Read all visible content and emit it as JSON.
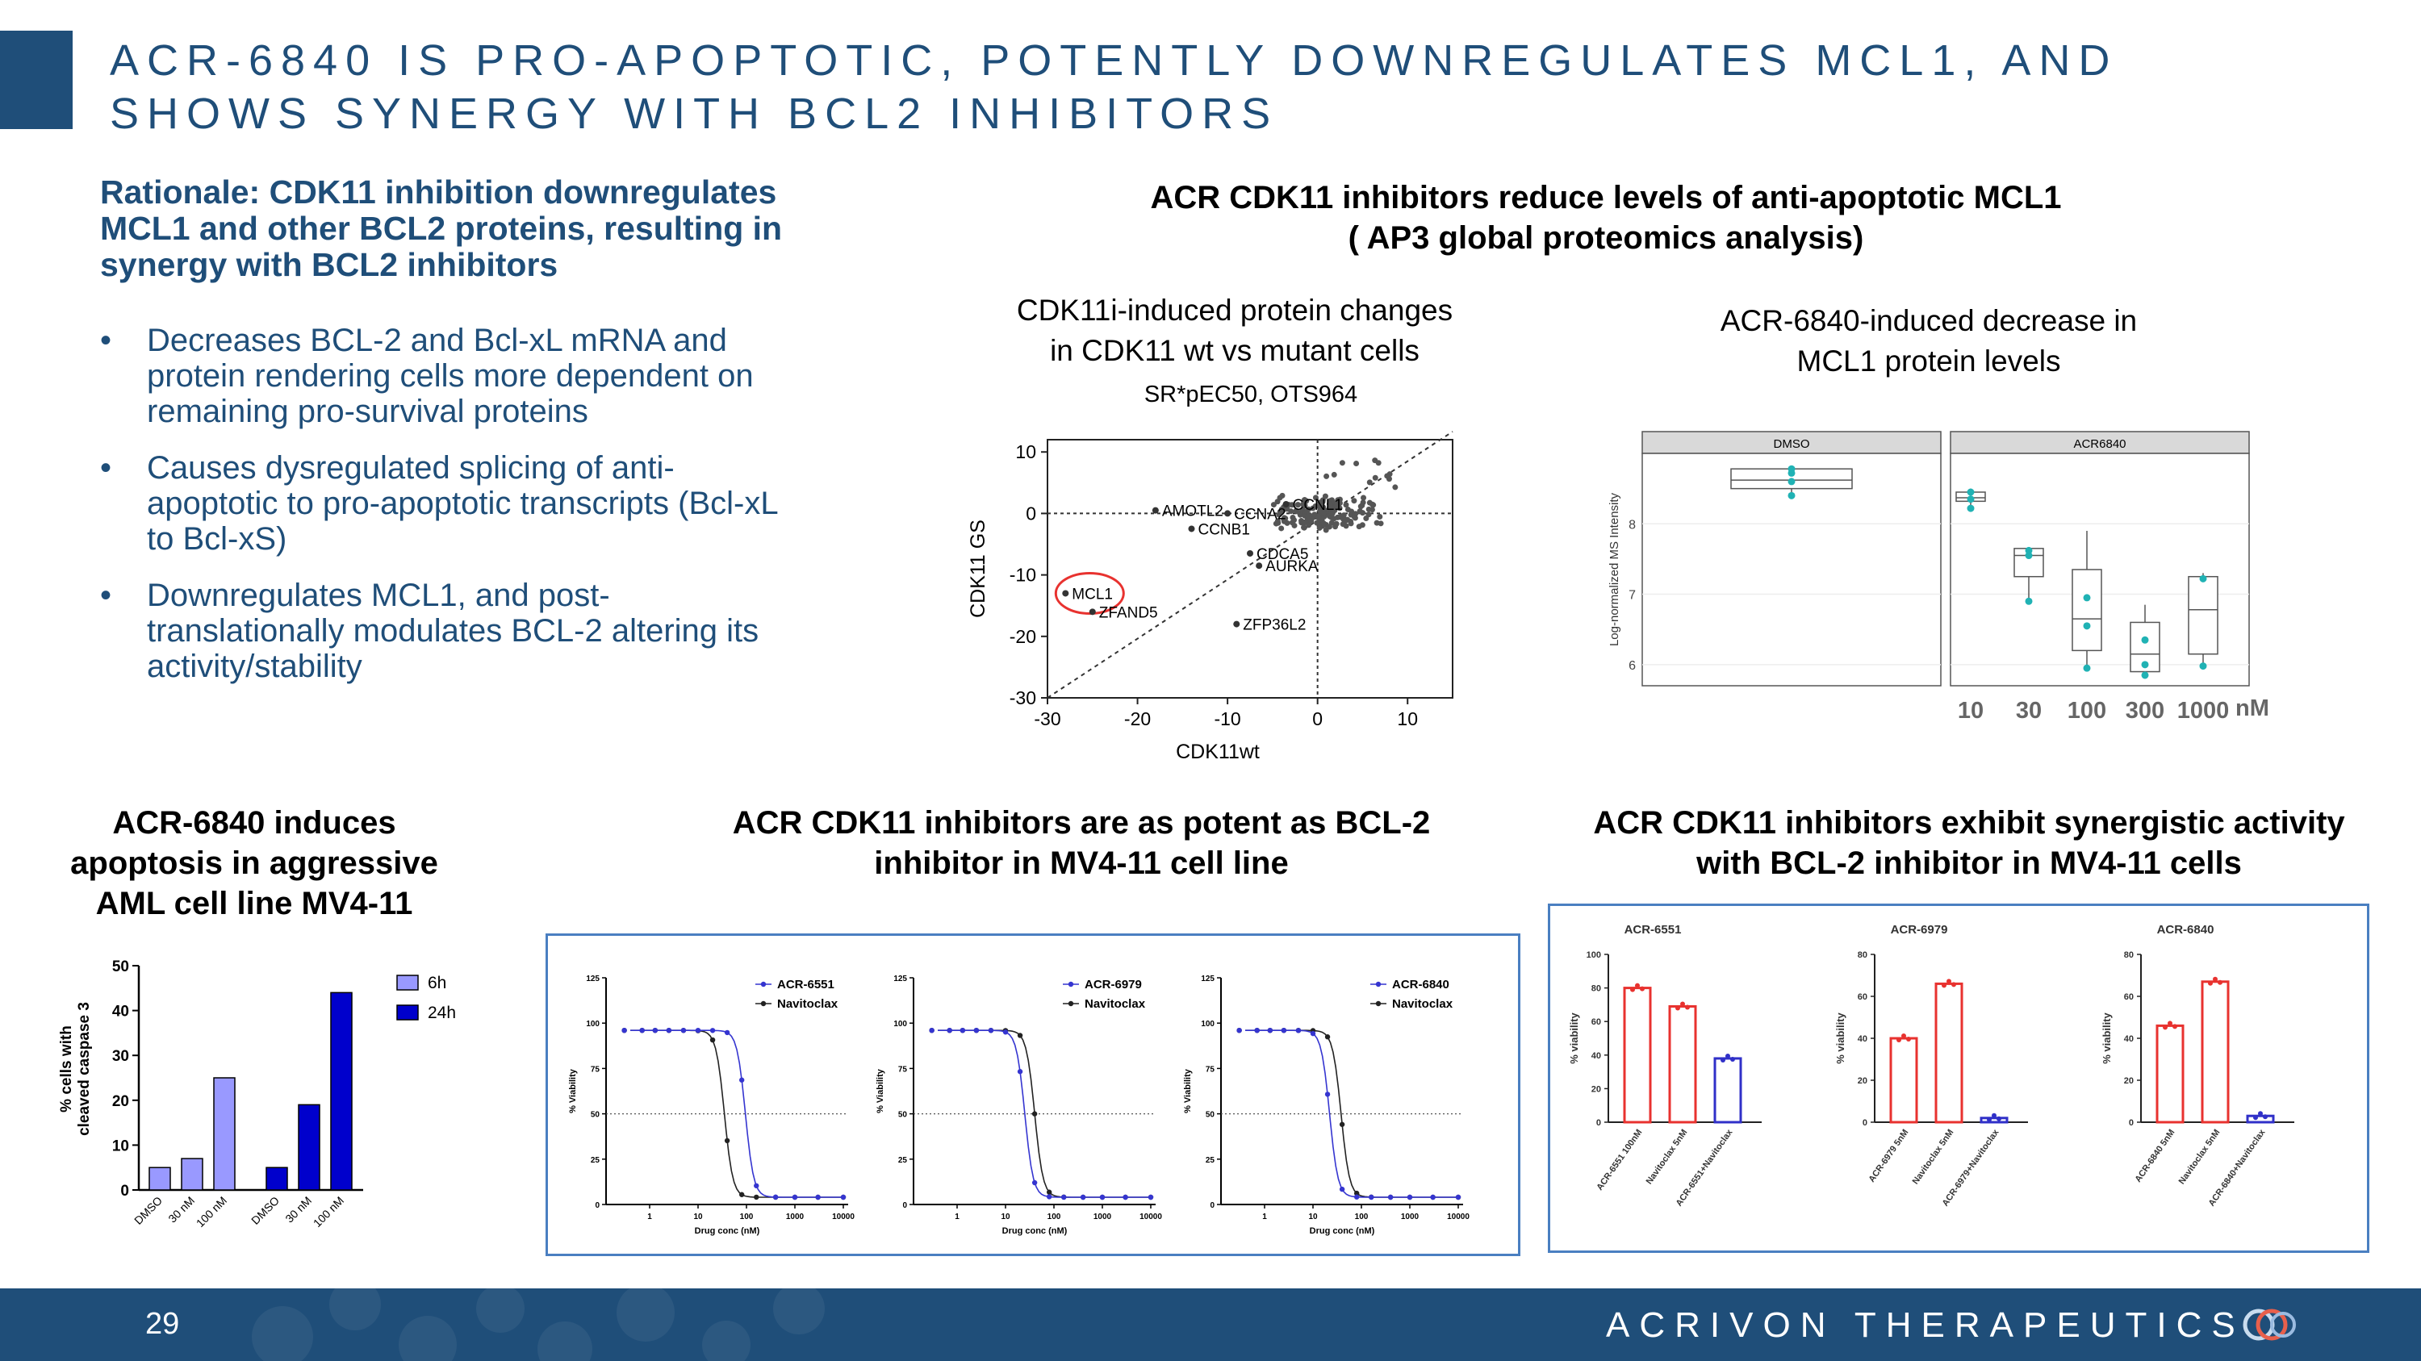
{
  "slide": {
    "title_line1": "ACR-6840 IS PRO-APOPTOTIC, POTENTLY DOWNREGULATES MCL1, AND",
    "title_line2": "SHOWS SYNERGY WITH BCL2 INHIBITORS",
    "rationale": "Rationale: CDK11 inhibition downregulates MCL1 and other BCL2 proteins, resulting in synergy with BCL2 inhibitors",
    "bullets": [
      "Decreases BCL-2 and Bcl-xL mRNA and protein rendering cells more dependent on remaining pro-survival proteins",
      "Causes dysregulated splicing of anti-apoptotic to pro-apoptotic transcripts (Bcl-xL to Bcl-xS)",
      "Downregulates MCL1, and post-translationally modulates BCL-2 altering its activity/stability"
    ],
    "proteomics_title_line1": "ACR CDK11 inhibitors reduce levels of anti-apoptotic MCL1",
    "proteomics_title_line2": "( AP3 global proteomics analysis)",
    "scatter_caption_line1": "CDK11i-induced protein changes",
    "scatter_caption_line2": "in CDK11 wt vs mutant cells",
    "box_caption_line1": "ACR-6840-induced decrease in",
    "box_caption_line2": "MCL1 protein levels",
    "apoptosis_title_line1": "ACR-6840 induces",
    "apoptosis_title_line2": "apoptosis in aggressive",
    "apoptosis_title_line3": "AML cell line MV4-11",
    "potency_title_line1": "ACR CDK11 inhibitors are as potent as BCL-2",
    "potency_title_line2": "inhibitor in MV4-11 cell line",
    "synergy_title_line1": "ACR CDK11 inhibitors exhibit synergistic activity",
    "synergy_title_line2": "with BCL-2 inhibitor in MV4-11 cells",
    "page_number": "29",
    "brand": "ACRIVON THERAPEUTICS",
    "colors": {
      "navy": "#1f4e79",
      "accent_blue": "#4a7fc1",
      "teal": "#20b2b4",
      "red": "#e8322f"
    }
  },
  "chart_data": [
    {
      "id": "scatter",
      "type": "scatter",
      "title": "SR*pEC50, OTS964",
      "xlabel": "CDK11wt",
      "ylabel": "CDK11 GS",
      "xlim": [
        -30,
        15
      ],
      "ylim": [
        -30,
        12
      ],
      "xticks": [
        -30,
        -20,
        -10,
        0,
        10
      ],
      "yticks": [
        10,
        0,
        -10,
        -20,
        -30
      ],
      "points": [
        {
          "label": "MCL1",
          "x": -28,
          "y": -13,
          "highlight": true
        },
        {
          "label": "ZFAND5",
          "x": -25,
          "y": -16
        },
        {
          "label": "AMOTL2",
          "x": -18,
          "y": 0.5
        },
        {
          "label": "CCNA2",
          "x": -10,
          "y": 0
        },
        {
          "label": "CCNL1",
          "x": -3.5,
          "y": 1.5
        },
        {
          "label": "CCNB1",
          "x": -14,
          "y": -2.5
        },
        {
          "label": "CDCA5",
          "x": -7.5,
          "y": -6.5
        },
        {
          "label": "AURKA",
          "x": -6.5,
          "y": -8.5
        },
        {
          "label": "ZFP36L2",
          "x": -9,
          "y": -18
        }
      ]
    },
    {
      "id": "boxplot",
      "type": "box",
      "ylabel": "Log-normalized MS Intensity",
      "ylim": [
        5.7,
        9.0
      ],
      "yticks": [
        6,
        7,
        8
      ],
      "panels": [
        "DMSO",
        "ACR6840"
      ],
      "categories": [
        "10",
        "30",
        "100",
        "300",
        "1000"
      ],
      "unit": "nM",
      "groups": [
        {
          "panel": "DMSO",
          "min": 8.4,
          "q1": 8.5,
          "median": 8.62,
          "q3": 8.78,
          "max": 8.8,
          "points": [
            8.4,
            8.6,
            8.72,
            8.78
          ]
        },
        {
          "panel": "ACR6840",
          "cat": "10",
          "min": 8.2,
          "q1": 8.32,
          "median": 8.37,
          "q3": 8.45,
          "max": 8.5,
          "points": [
            8.22,
            8.35,
            8.45
          ]
        },
        {
          "panel": "ACR6840",
          "cat": "30",
          "min": 6.9,
          "q1": 7.25,
          "median": 7.55,
          "q3": 7.65,
          "max": 7.67,
          "points": [
            6.9,
            7.55,
            7.62
          ]
        },
        {
          "panel": "ACR6840",
          "cat": "100",
          "min": 5.95,
          "q1": 6.2,
          "median": 6.65,
          "q3": 7.35,
          "max": 7.9,
          "points": [
            5.95,
            6.55,
            6.95
          ]
        },
        {
          "panel": "ACR6840",
          "cat": "300",
          "min": 5.8,
          "q1": 5.9,
          "median": 6.15,
          "q3": 6.6,
          "max": 6.85,
          "points": [
            5.85,
            6.0,
            6.35
          ]
        },
        {
          "panel": "ACR6840",
          "cat": "1000",
          "min": 5.98,
          "q1": 6.15,
          "median": 6.78,
          "q3": 7.25,
          "max": 7.3,
          "points": [
            5.98,
            7.22
          ]
        }
      ]
    },
    {
      "id": "caspase",
      "type": "bar",
      "ylabel_line1": "% cells with",
      "ylabel_line2": "cleaved caspase 3",
      "ylim": [
        0,
        50
      ],
      "yticks": [
        0,
        10,
        20,
        30,
        40,
        50
      ],
      "categories": [
        "DMSO",
        "30 nM",
        "100 nM"
      ],
      "series": [
        {
          "name": "6h",
          "values": [
            5,
            7,
            25
          ],
          "color": "#9999ff"
        },
        {
          "name": "24h",
          "values": [
            5,
            19,
            44
          ],
          "color": "#0000cc"
        }
      ]
    },
    {
      "id": "dose_response",
      "type": "line",
      "xlabel": "Drug conc (nM)",
      "ylabel": "% Viability",
      "ylim": [
        0,
        125
      ],
      "yticks": [
        0,
        25,
        50,
        75,
        100,
        125
      ],
      "xticks": [
        "1",
        "10",
        "100",
        "1000",
        "10000"
      ],
      "panels": [
        {
          "compound": "ACR-6551",
          "compound_ic50": 95,
          "navitoclax_ic50": 35
        },
        {
          "compound": "ACR-6979",
          "compound_ic50": 25,
          "navitoclax_ic50": 40
        },
        {
          "compound": "ACR-6840",
          "compound_ic50": 22,
          "navitoclax_ic50": 38
        }
      ],
      "reference": "Navitoclax"
    },
    {
      "id": "synergy",
      "type": "bar",
      "ylabel": "% viability",
      "panels": [
        {
          "name": "ACR-6551",
          "categories": [
            "ACR-6551 100nM",
            "Navitoclax 5nM",
            "ACR-6551+Navitoclax"
          ],
          "values": [
            80,
            69,
            38
          ],
          "ymax": 100,
          "yticks": [
            0,
            20,
            40,
            60,
            80,
            100
          ]
        },
        {
          "name": "ACR-6979",
          "categories": [
            "ACR-6979 5nM",
            "Navitoclax 5nM",
            "ACR-6979+Navitoclax"
          ],
          "values": [
            40,
            66,
            2
          ],
          "ymax": 80,
          "yticks": [
            0,
            20,
            40,
            60,
            80
          ]
        },
        {
          "name": "ACR-6840",
          "categories": [
            "ACR-6840 5nM",
            "Navitoclax 5nM",
            "ACR-6840+Navitoclax"
          ],
          "values": [
            46,
            67,
            3
          ],
          "ymax": 80,
          "yticks": [
            0,
            20,
            40,
            60,
            80
          ]
        }
      ]
    }
  ]
}
